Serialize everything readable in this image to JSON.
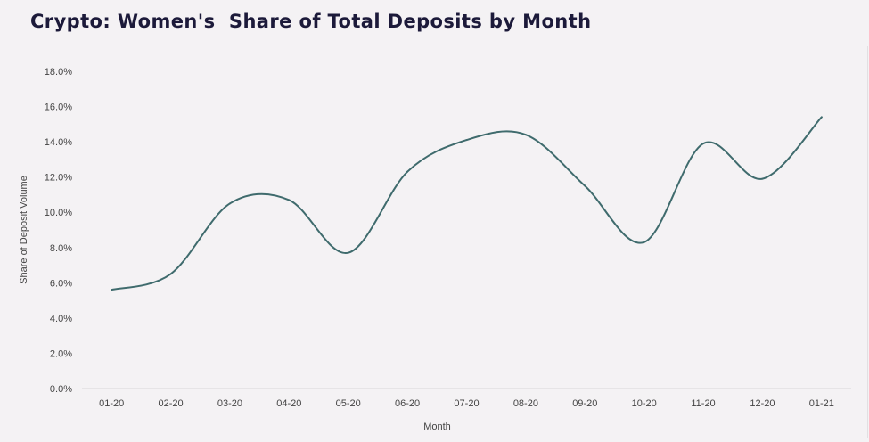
{
  "chart_data": {
    "type": "line",
    "title": "Crypto: Women's  Share of Total Deposits by Month",
    "xlabel": "Month",
    "ylabel": "Share of Deposit Volume",
    "categories": [
      "01-20",
      "02-20",
      "03-20",
      "04-20",
      "05-20",
      "06-20",
      "07-20",
      "08-20",
      "09-20",
      "10-20",
      "11-20",
      "12-20",
      "01-21"
    ],
    "series": [
      {
        "values": [
          5.6,
          6.5,
          10.5,
          10.7,
          7.7,
          12.3,
          14.1,
          14.4,
          11.5,
          8.3,
          13.9,
          11.9,
          15.4
        ]
      }
    ],
    "ylim": [
      0,
      18
    ],
    "yticks": [
      "0.0%",
      "2.0%",
      "4.0%",
      "6.0%",
      "8.0%",
      "10.0%",
      "12.0%",
      "14.0%",
      "16.0%",
      "18.0%"
    ],
    "grid": false,
    "legend": "none",
    "smooth": true,
    "colors": {
      "line": "#3f6b6d",
      "title": "#1c1a3a",
      "axis": "#d9d7d9",
      "background": "#f4f2f4"
    }
  }
}
